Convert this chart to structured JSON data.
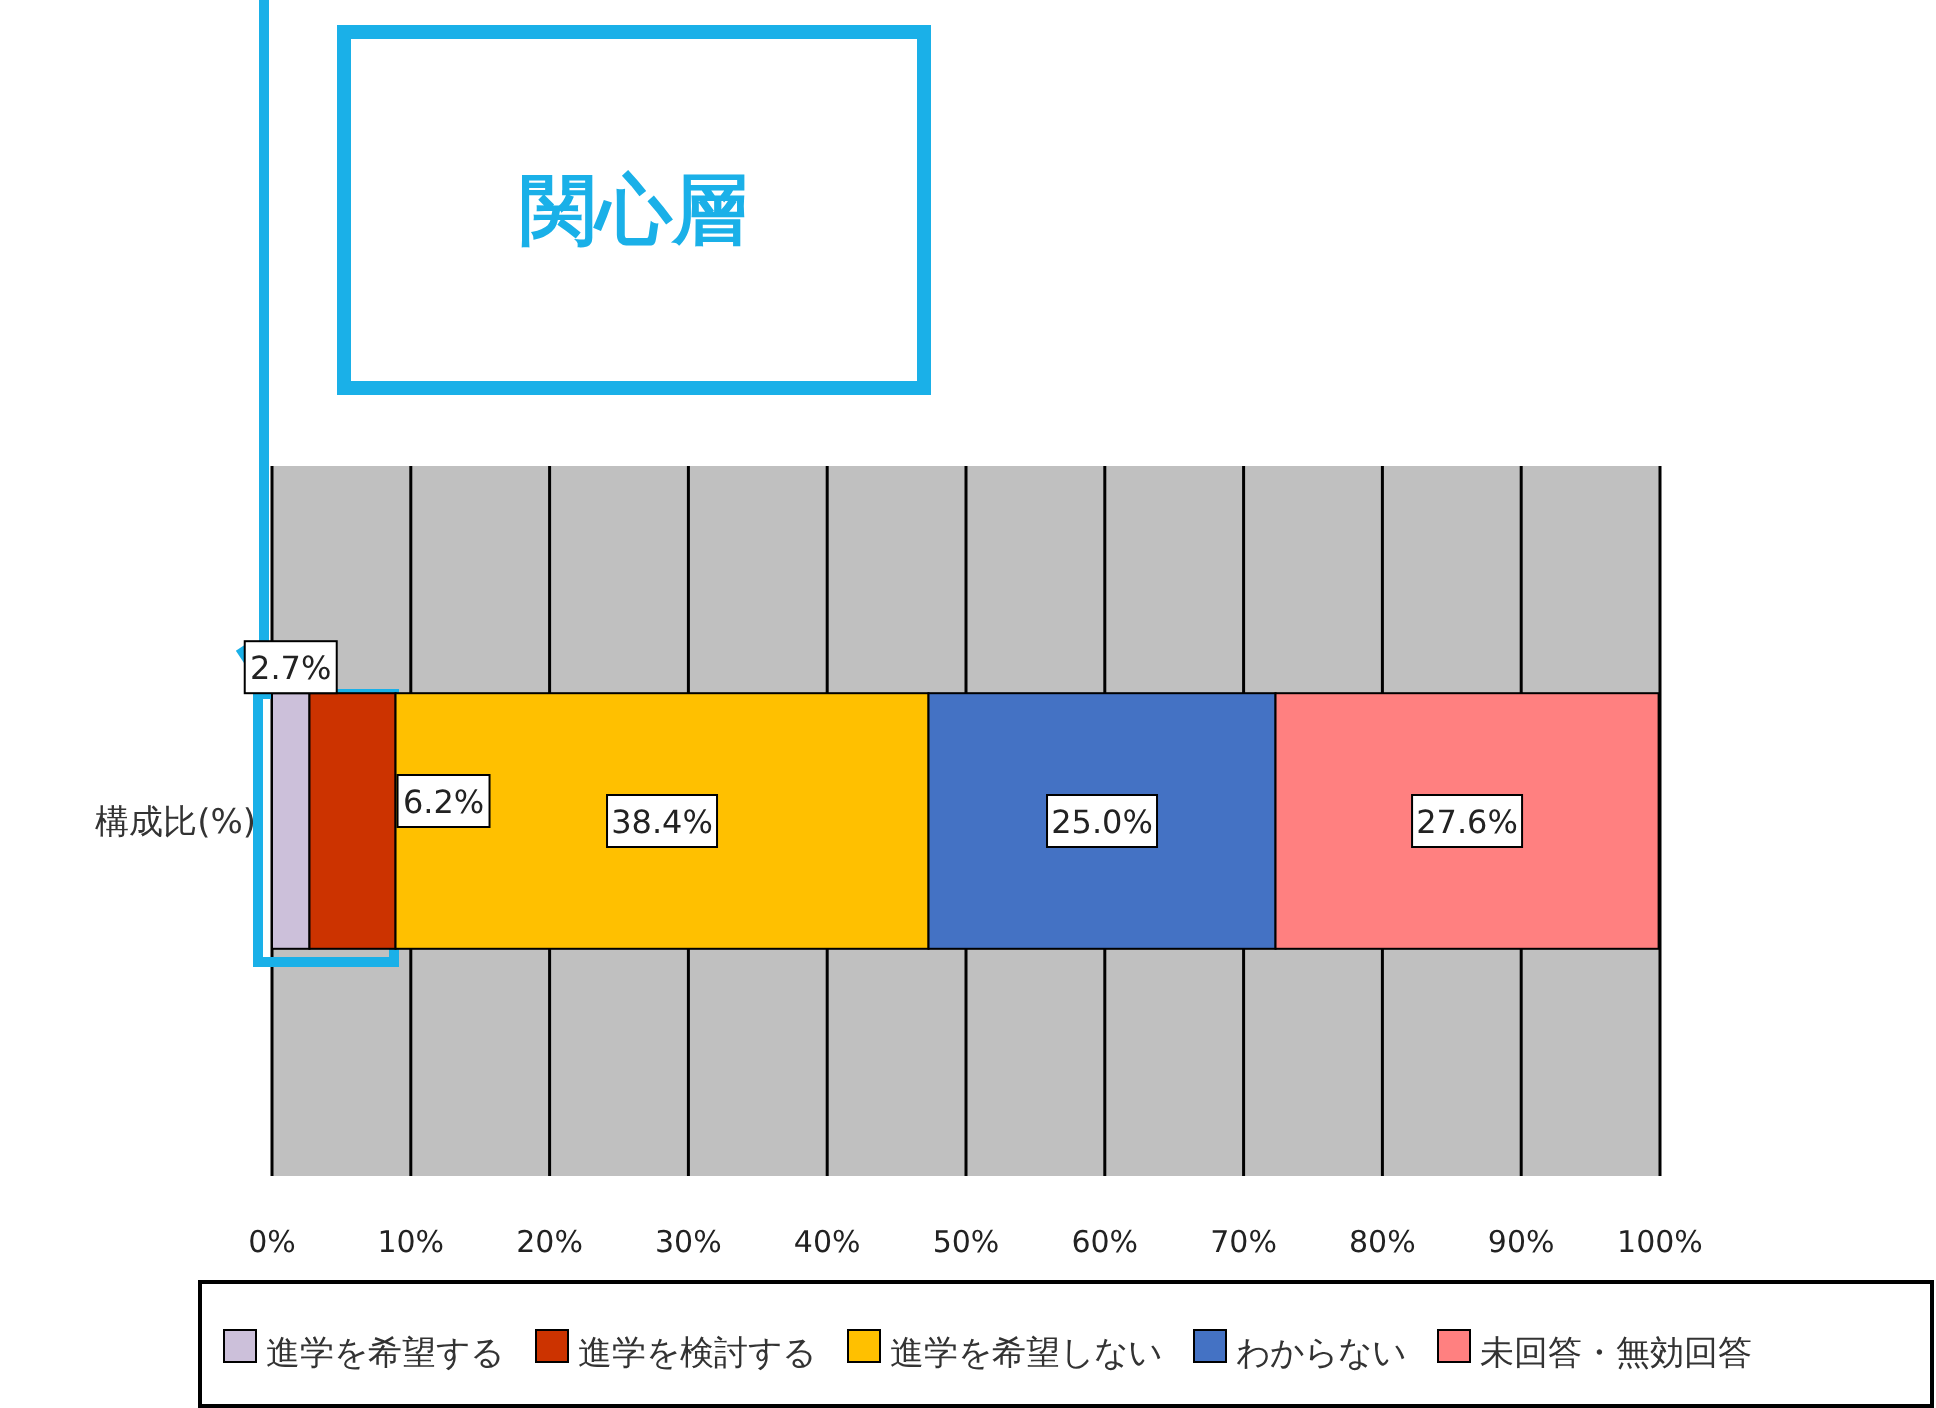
{
  "chart_data": {
    "type": "bar",
    "orientation": "horizontal",
    "stacked": true,
    "categories": [
      "構成比(%)"
    ],
    "series": [
      {
        "name": "進学を希望する",
        "color": "#ccc0da",
        "values": [
          2.7
        ],
        "value_labels": [
          "2.7%"
        ]
      },
      {
        "name": "進学を検討する",
        "color": "#cc3300",
        "values": [
          6.2
        ],
        "value_labels": [
          "6.2%"
        ]
      },
      {
        "name": "進学を希望しない",
        "color": "#ffc000",
        "values": [
          38.4
        ],
        "value_labels": [
          "38.4%"
        ]
      },
      {
        "name": "わからない",
        "color": "#4472c4",
        "values": [
          25.0
        ],
        "value_labels": [
          "25.0%"
        ]
      },
      {
        "name": "未回答・無効回答",
        "color": "#ff8080",
        "values": [
          27.6
        ],
        "value_labels": [
          "27.6%"
        ]
      }
    ],
    "xlim": [
      0,
      100
    ],
    "xticks": [
      {
        "value": 0,
        "label": "0%"
      },
      {
        "value": 10,
        "label": "10%"
      },
      {
        "value": 20,
        "label": "20%"
      },
      {
        "value": 30,
        "label": "30%"
      },
      {
        "value": 40,
        "label": "40%"
      },
      {
        "value": 50,
        "label": "50%"
      },
      {
        "value": 60,
        "label": "60%"
      },
      {
        "value": 70,
        "label": "70%"
      },
      {
        "value": 80,
        "label": "80%"
      },
      {
        "value": 90,
        "label": "90%"
      },
      {
        "value": 100,
        "label": "100%"
      }
    ],
    "grid": "x",
    "legend": "bottom",
    "annotations": [
      "関心層"
    ]
  }
}
